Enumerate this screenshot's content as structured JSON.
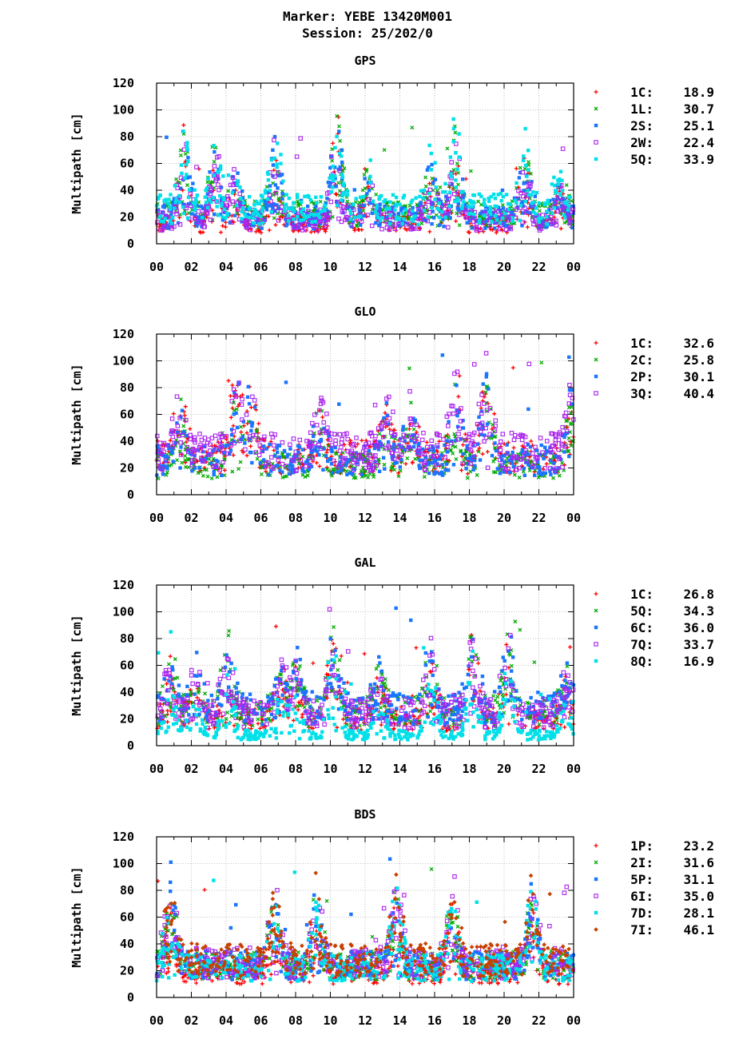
{
  "header": {
    "marker": "Marker: YEBE 13420M001",
    "session": "Session: 25/202/0"
  },
  "axes": {
    "ylabel": "Multipath [cm]",
    "ylim": [
      0,
      120
    ],
    "yticks": [
      "0",
      "20",
      "40",
      "60",
      "80",
      "100",
      "120"
    ],
    "xticks": [
      "00",
      "02",
      "04",
      "06",
      "08",
      "10",
      "12",
      "14",
      "16",
      "18",
      "20",
      "22",
      "00"
    ]
  },
  "chart_data": [
    {
      "type": "scatter",
      "title": "GPS",
      "xlim": [
        0,
        24
      ],
      "ylim": [
        0,
        120
      ],
      "series": [
        {
          "name": "1C",
          "rms": "18.9",
          "color": "#ff0000",
          "marker": "plus",
          "base": 15
        },
        {
          "name": "1L",
          "rms": "30.7",
          "color": "#00aa00",
          "marker": "cross",
          "base": 22
        },
        {
          "name": "2S",
          "rms": "25.1",
          "color": "#1a75ff",
          "marker": "square-filled",
          "base": 20
        },
        {
          "name": "2W",
          "rms": "22.4",
          "color": "#aa22ee",
          "marker": "square-open",
          "base": 18
        },
        {
          "name": "5Q",
          "rms": "33.9",
          "color": "#00e0e8",
          "marker": "square-filled",
          "base": 26
        }
      ],
      "peaks": [
        [
          1.6,
          70
        ],
        [
          3.4,
          55
        ],
        [
          4.5,
          40
        ],
        [
          6.8,
          65
        ],
        [
          10.4,
          85
        ],
        [
          12.2,
          40
        ],
        [
          15.8,
          45
        ],
        [
          17.2,
          70
        ],
        [
          21.2,
          55
        ],
        [
          23.2,
          35
        ]
      ]
    },
    {
      "type": "scatter",
      "title": "GLO",
      "xlim": [
        0,
        24
      ],
      "ylim": [
        0,
        120
      ],
      "series": [
        {
          "name": "1C",
          "rms": "32.6",
          "color": "#ff0000",
          "marker": "plus",
          "base": 28
        },
        {
          "name": "2C",
          "rms": "25.8",
          "color": "#00aa00",
          "marker": "cross",
          "base": 22
        },
        {
          "name": "2P",
          "rms": "30.1",
          "color": "#1a75ff",
          "marker": "square-filled",
          "base": 26
        },
        {
          "name": "3Q",
          "rms": "40.4",
          "color": "#aa22ee",
          "marker": "square-open",
          "base": 32
        }
      ],
      "peaks": [
        [
          1.4,
          55
        ],
        [
          4.6,
          80
        ],
        [
          5.4,
          55
        ],
        [
          9.4,
          45
        ],
        [
          13.2,
          45
        ],
        [
          14.6,
          45
        ],
        [
          17.2,
          65
        ],
        [
          19.0,
          70
        ],
        [
          23.8,
          55
        ]
      ]
    },
    {
      "type": "scatter",
      "title": "GAL",
      "xlim": [
        0,
        24
      ],
      "ylim": [
        0,
        120
      ],
      "series": [
        {
          "name": "1C",
          "rms": "26.8",
          "color": "#ff0000",
          "marker": "plus",
          "base": 20
        },
        {
          "name": "5Q",
          "rms": "34.3",
          "color": "#00aa00",
          "marker": "cross",
          "base": 26
        },
        {
          "name": "6C",
          "rms": "36.0",
          "color": "#1a75ff",
          "marker": "square-filled",
          "base": 28
        },
        {
          "name": "7Q",
          "rms": "33.7",
          "color": "#aa22ee",
          "marker": "square-open",
          "base": 24
        },
        {
          "name": "8Q",
          "rms": "16.9",
          "color": "#00e0e8",
          "marker": "square-filled",
          "base": 8
        }
      ],
      "peaks": [
        [
          0.8,
          45
        ],
        [
          2.2,
          40
        ],
        [
          4.1,
          60
        ],
        [
          7.2,
          40
        ],
        [
          8.0,
          45
        ],
        [
          10.2,
          75
        ],
        [
          12.8,
          35
        ],
        [
          15.8,
          55
        ],
        [
          18.2,
          70
        ],
        [
          20.2,
          60
        ],
        [
          23.6,
          30
        ]
      ]
    },
    {
      "type": "scatter",
      "title": "BDS",
      "xlim": [
        0,
        24
      ],
      "ylim": [
        0,
        120
      ],
      "series": [
        {
          "name": "1P",
          "rms": "23.2",
          "color": "#ff0000",
          "marker": "plus",
          "base": 18
        },
        {
          "name": "2I",
          "rms": "31.6",
          "color": "#00aa00",
          "marker": "cross",
          "base": 24
        },
        {
          "name": "5P",
          "rms": "31.1",
          "color": "#1a75ff",
          "marker": "square-filled",
          "base": 24
        },
        {
          "name": "6I",
          "rms": "35.0",
          "color": "#aa22ee",
          "marker": "square-open",
          "base": 26
        },
        {
          "name": "7D",
          "rms": "28.1",
          "color": "#00e0e8",
          "marker": "square-filled",
          "base": 22
        },
        {
          "name": "7I",
          "rms": "46.1",
          "color": "#c84000",
          "marker": "diamond",
          "base": 28
        }
      ],
      "peaks": [
        [
          0.8,
          60
        ],
        [
          6.8,
          60
        ],
        [
          9.2,
          60
        ],
        [
          13.8,
          65
        ],
        [
          17.0,
          60
        ],
        [
          21.6,
          70
        ]
      ]
    }
  ]
}
